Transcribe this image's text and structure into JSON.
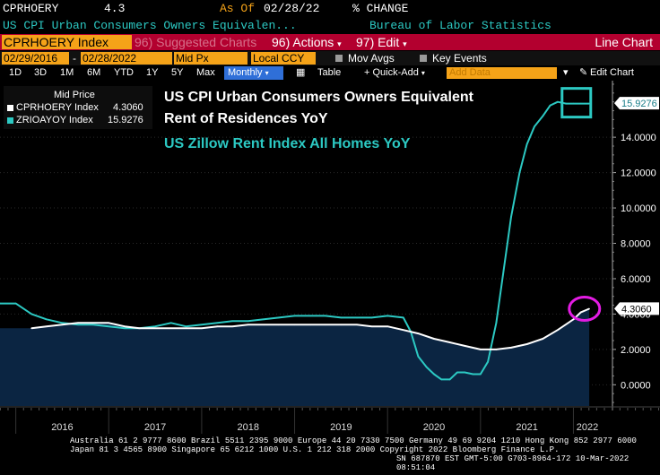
{
  "header": {
    "ticker": "CPRHOERY",
    "value": "4.3",
    "as_of_label": "As Of",
    "as_of_date": "02/28/22",
    "change_label": "% CHANGE",
    "series_name": "US CPI Urban Consumers Owners Equivalen...",
    "source": "Bureau of Labor Statistics"
  },
  "toolbar": {
    "security": "CPRHOERY Index",
    "suggested": "96) Suggested Charts",
    "actions": "96) Actions",
    "edit": "97) Edit",
    "chart_type": "Line Chart",
    "start_date": "02/29/2016",
    "end_date": "02/28/2022",
    "price_field": "Mid Px",
    "currency": "Local CCY",
    "mov_avgs": "Mov Avgs",
    "key_events": "Key Events",
    "ranges": [
      "1D",
      "3D",
      "1M",
      "6M",
      "YTD",
      "1Y",
      "5Y",
      "Max"
    ],
    "frequency": "Monthly",
    "table": "Table",
    "quick_add": "+ Quick-Add",
    "add_data_placeholder": "Add Data",
    "edit_chart": "Edit Chart"
  },
  "legend": {
    "title": "Mid Price",
    "items": [
      {
        "name": "CPRHOERY Index",
        "value": "4.3060",
        "color": "#ffffff"
      },
      {
        "name": "ZRIOAYOY Index",
        "value": "15.9276",
        "color": "#2cc9c3"
      }
    ]
  },
  "annotations": {
    "title_line1": "US CPI Urban Consumers Owners Equivalent",
    "title_line2": "Rent of Residences YoY",
    "subtitle": "US Zillow Rent Index All Homes YoY"
  },
  "footer": {
    "line1": "Australia 61 2 9777 8600 Brazil 5511 2395 9000 Europe 44 20 7330 7500 Germany 49 69 9204 1210 Hong Kong 852 2977 6000",
    "line2": "Japan 81 3 4565 8900        Singapore 65 6212 1000        U.S. 1 212 318 2000            Copyright 2022 Bloomberg Finance L.P.",
    "line3": "SN 687870 EST  GMT-5:00 G703-8964-172 10-Mar-2022 08:51:04"
  },
  "chart_data": {
    "type": "line",
    "x_ticks": [
      "2016",
      "2017",
      "2018",
      "2019",
      "2020",
      "2021",
      "2022"
    ],
    "y_ticks": [
      "0.0000",
      "2.0000",
      "4.0000",
      "6.0000",
      "8.0000",
      "10.0000",
      "12.0000",
      "14.0000"
    ],
    "ylim": [
      -1.2,
      17.2
    ],
    "last_values": [
      "15.9276",
      "4.3060"
    ],
    "series": [
      {
        "name": "CPRHOERY Index",
        "color": "#ffffff",
        "fill": "#0b2542",
        "x": [
          2016.17,
          2016.33,
          2016.5,
          2016.67,
          2016.83,
          2017.0,
          2017.17,
          2017.33,
          2017.5,
          2017.67,
          2017.83,
          2018.0,
          2018.17,
          2018.33,
          2018.5,
          2018.67,
          2018.83,
          2019.0,
          2019.17,
          2019.33,
          2019.5,
          2019.67,
          2019.83,
          2020.0,
          2020.17,
          2020.33,
          2020.5,
          2020.67,
          2020.83,
          2021.0,
          2021.17,
          2021.33,
          2021.5,
          2021.67,
          2021.83,
          2022.0,
          2022.08,
          2022.17
        ],
        "values": [
          3.2,
          3.3,
          3.4,
          3.5,
          3.5,
          3.5,
          3.3,
          3.2,
          3.2,
          3.2,
          3.2,
          3.2,
          3.3,
          3.3,
          3.4,
          3.4,
          3.4,
          3.4,
          3.4,
          3.4,
          3.4,
          3.4,
          3.3,
          3.3,
          3.1,
          2.9,
          2.6,
          2.4,
          2.2,
          2.0,
          2.0,
          2.1,
          2.3,
          2.6,
          3.1,
          3.7,
          4.1,
          4.3
        ]
      },
      {
        "name": "ZRIOAYOY Index",
        "color": "#2cc9c3",
        "fill": "none",
        "x": [
          2015.83,
          2016.0,
          2016.17,
          2016.33,
          2016.5,
          2016.67,
          2016.83,
          2017.0,
          2017.17,
          2017.33,
          2017.5,
          2017.67,
          2017.83,
          2018.0,
          2018.17,
          2018.33,
          2018.5,
          2018.67,
          2018.83,
          2019.0,
          2019.17,
          2019.33,
          2019.5,
          2019.67,
          2019.83,
          2020.0,
          2020.17,
          2020.25,
          2020.33,
          2020.42,
          2020.5,
          2020.58,
          2020.67,
          2020.75,
          2020.83,
          2020.92,
          2021.0,
          2021.08,
          2021.17,
          2021.25,
          2021.33,
          2021.42,
          2021.5,
          2021.58,
          2021.67,
          2021.75,
          2021.83,
          2021.92,
          2022.0,
          2022.08,
          2022.17
        ],
        "values": [
          4.6,
          4.6,
          4.0,
          3.7,
          3.5,
          3.4,
          3.4,
          3.3,
          3.2,
          3.2,
          3.3,
          3.5,
          3.3,
          3.4,
          3.5,
          3.6,
          3.6,
          3.7,
          3.8,
          3.9,
          3.9,
          3.9,
          3.8,
          3.8,
          3.8,
          3.9,
          3.8,
          3.0,
          1.6,
          1.0,
          0.6,
          0.3,
          0.3,
          0.7,
          0.7,
          0.6,
          0.6,
          1.3,
          3.5,
          6.5,
          9.5,
          12.0,
          13.6,
          14.6,
          15.2,
          15.8,
          16.0,
          15.9,
          15.9,
          15.9,
          15.9
        ]
      }
    ]
  }
}
